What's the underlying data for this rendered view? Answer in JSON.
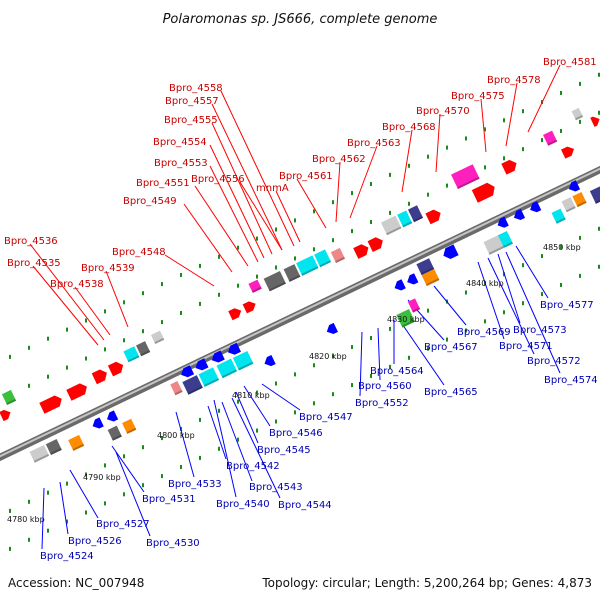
{
  "title": "Polaromonas sp. JS666, complete genome",
  "footer": {
    "accession": "Accession: NC_007948",
    "summary": "Topology: circular; Length: 5,200,264 bp; Genes: 4,873"
  },
  "axis": {
    "ticks": [
      "4780 kbp",
      "4790 kbp",
      "4800 kbp",
      "4810 kbp",
      "4820 kbp",
      "4830 kbp",
      "4840 kbp",
      "4850 kbp"
    ]
  },
  "colors": {
    "backbone": "#8c8c8c",
    "forward_strand": "#ff0000",
    "reverse_strand": "#0000ff",
    "label_forward": "#c80000",
    "label_reverse": "#0000b4",
    "gene_cog_cyan": "#00e5ee",
    "gene_cog_gray": "#666666",
    "gene_cog_magenta": "#ff1fbf",
    "gene_cog_orange": "#ff8c00",
    "gene_cog_green": "#3cbf3c",
    "gene_cog_purple": "#3d3d8f",
    "tick_dot": "#1a8a1a"
  },
  "labels_top": [
    "Bpro_4536",
    "Bpro_4535",
    "Bpro_4538",
    "Bpro_4539",
    "Bpro_4548",
    "Bpro_4549",
    "Bpro_4551",
    "Bpro_4553",
    "Bpro_4554",
    "Bpro_4555",
    "Bpro_4557",
    "Bpro_4558",
    "Bpro_4556",
    "mnmA",
    "Bpro_4561",
    "Bpro_4562",
    "Bpro_4563",
    "Bpro_4568",
    "Bpro_4570",
    "Bpro_4575",
    "Bpro_4578",
    "Bpro_4581"
  ],
  "labels_bottom": [
    "Bpro_4524",
    "Bpro_4526",
    "Bpro_4527",
    "Bpro_4530",
    "Bpro_4531",
    "Bpro_4533",
    "Bpro_4540",
    "Bpro_4542",
    "Bpro_4543",
    "Bpro_4544",
    "Bpro_4545",
    "Bpro_4546",
    "Bpro_4547",
    "Bpro_4552",
    "Bpro_4560",
    "Bpro_4564",
    "Bpro_4565",
    "Bpro_4567",
    "Bpro_4569",
    "Bpro_4571",
    "Bpro_4572",
    "Bpro_4573",
    "Bpro_4574",
    "Bpro_4577"
  ]
}
